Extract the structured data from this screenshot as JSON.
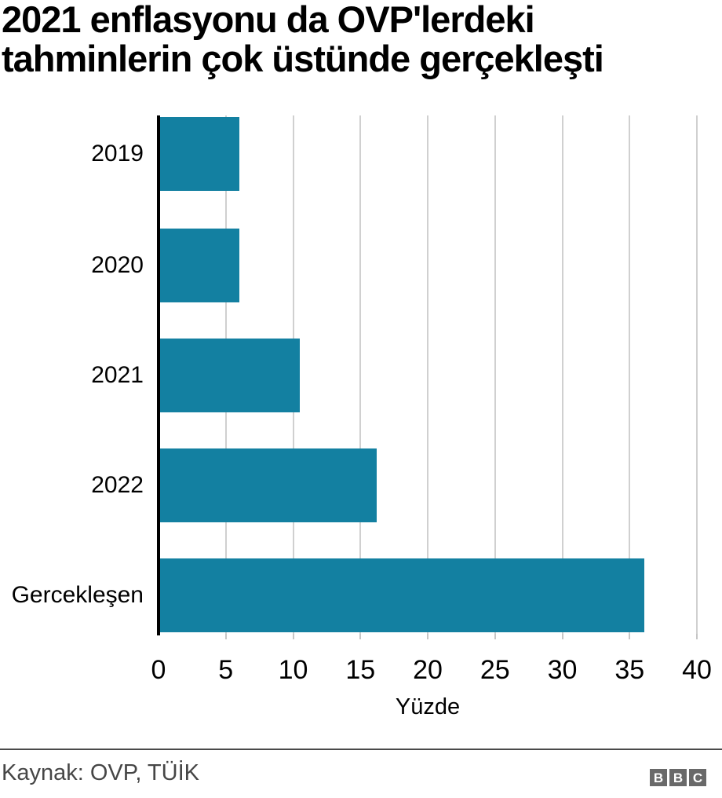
{
  "title": {
    "line1": "2021 enflasyonu da OVP'lerdeki",
    "line2": "tahminlerin çok üstünde gerçekleşti"
  },
  "chart_data": {
    "type": "bar",
    "orientation": "horizontal",
    "title": "2021 enflasyonu da OVP'lerdeki tahminlerin çok üstünde gerçekleşti",
    "categories": [
      "2019",
      "2020",
      "2021",
      "2022",
      "Gercekleşen"
    ],
    "values": [
      6,
      6,
      10.5,
      16.2,
      36.1
    ],
    "xlabel": "Yüzde",
    "xlim": [
      0,
      40
    ],
    "xticks": [
      0,
      5,
      10,
      15,
      20,
      25,
      30,
      35,
      40
    ],
    "grid": "vertical-gridlines",
    "legend": "none",
    "bar_color": "#1380A1"
  },
  "footer": {
    "source": "Kaynak: OVP, TÜİK",
    "logo": {
      "letters": [
        "B",
        "B",
        "C"
      ],
      "color": "#696969"
    }
  },
  "colors": {
    "bar": "#1380A1",
    "gridline": "#d0d0d0",
    "axis_line": "#000000",
    "tick_stub": "#c6c6c6",
    "title_text": "#000000",
    "footer_text": "#464646",
    "divider": "#4a4a4a"
  }
}
